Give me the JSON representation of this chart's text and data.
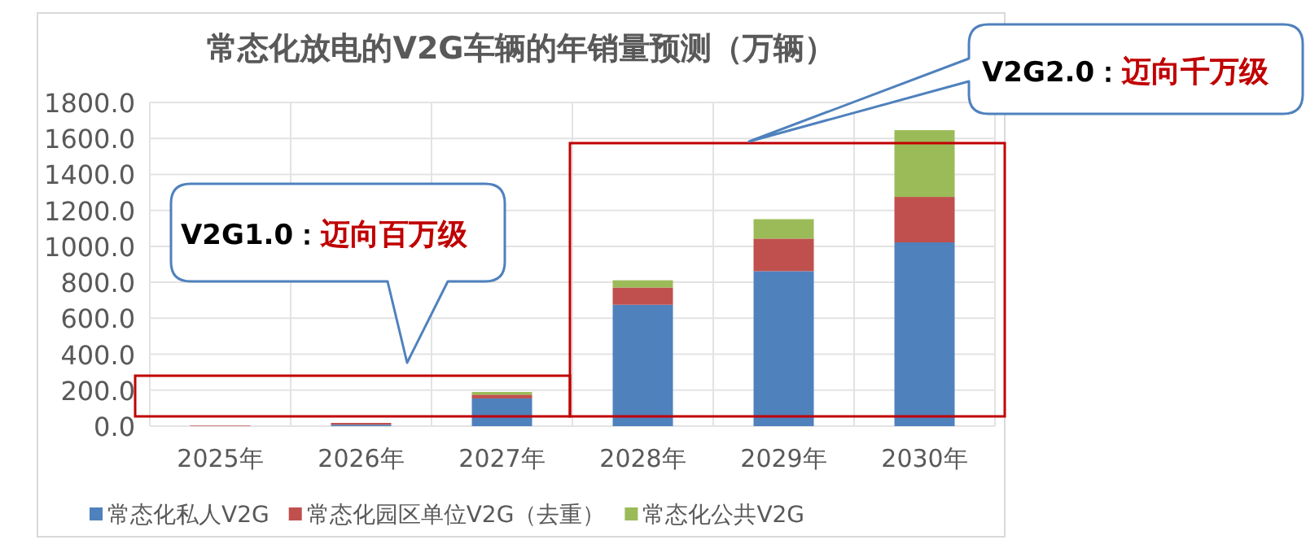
{
  "chart_data": {
    "type": "bar",
    "title": "常态化放电的V2G车辆的年销量预测（万辆）",
    "stacked": true,
    "categories": [
      "2025年",
      "2026年",
      "2027年",
      "2028年",
      "2029年",
      "2030年"
    ],
    "series": [
      {
        "name": "常态化私人V2G",
        "color": "#4f81bd",
        "values": [
          null,
          8,
          154,
          675,
          862,
          1022
        ]
      },
      {
        "name": "常态化园区单位V2G（去重）",
        "color": "#c0504d",
        "values": [
          3,
          10,
          21,
          96,
          181,
          253
        ]
      },
      {
        "name": "常态化公共V2G",
        "color": "#9bbb59",
        "values": [
          null,
          null,
          15,
          40,
          108,
          371
        ]
      }
    ],
    "ylim": [
      0,
      1800
    ],
    "yticks": [
      {
        "value": 0,
        "label": "0.0"
      },
      {
        "value": 200,
        "label": "200.0"
      },
      {
        "value": 400,
        "label": "400.0"
      },
      {
        "value": 600,
        "label": "600.0"
      },
      {
        "value": 800,
        "label": "800.0"
      },
      {
        "value": 1000,
        "label": "1000.0"
      },
      {
        "value": 1200,
        "label": "1200.0"
      },
      {
        "value": 1400,
        "label": "1400.0"
      },
      {
        "value": 1600,
        "label": "1600.0"
      },
      {
        "value": 1800,
        "label": "1800.0"
      }
    ],
    "grid": true,
    "legend": "bottom",
    "annotations": [
      "V2G1.0：",
      "迈向百万级",
      "V2G2.0：",
      "迈向千万级"
    ]
  }
}
